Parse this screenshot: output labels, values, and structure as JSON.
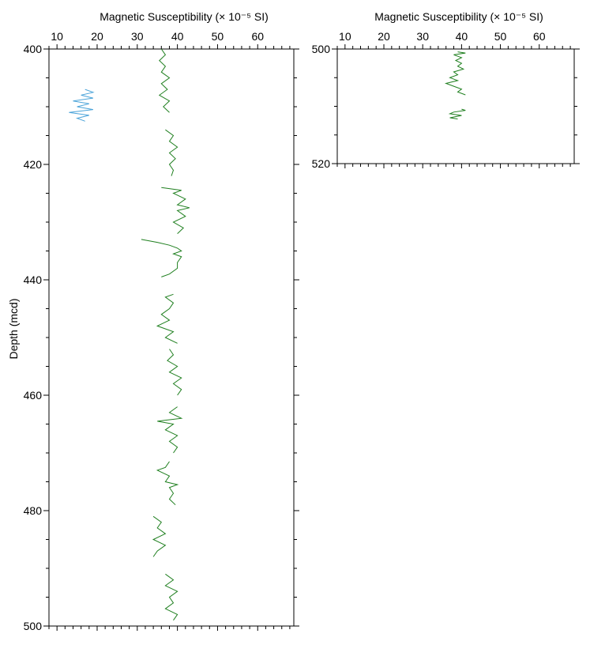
{
  "chart_data": [
    {
      "type": "line",
      "title": "Magnetic Susceptibility (× 10⁻⁵ SI)",
      "xlabel": "Magnetic Susceptibility (× 10⁻⁵ SI)",
      "ylabel": "Depth (mcd)",
      "xlim": [
        8,
        69
      ],
      "ylim": [
        400,
        500
      ],
      "y_inverted": true,
      "x_ticks": [
        10,
        20,
        30,
        40,
        50,
        60
      ],
      "y_ticks": [
        400,
        420,
        440,
        460,
        480,
        500
      ],
      "grid": false,
      "series": [
        {
          "color": "#4aa3d9",
          "points": [
            [
              17,
              407
            ],
            [
              19,
              407.5
            ],
            [
              16,
              408
            ],
            [
              19,
              408.5
            ],
            [
              14,
              409
            ],
            [
              18,
              409.5
            ],
            [
              15,
              410
            ],
            [
              19,
              410.5
            ],
            [
              13,
              411
            ],
            [
              18,
              411.5
            ],
            [
              15,
              412
            ],
            [
              17,
              412.5
            ]
          ]
        },
        {
          "color": "#1f7f1f",
          "points": [
            [
              36,
              400
            ],
            [
              37,
              401
            ],
            [
              35.5,
              402
            ],
            [
              37,
              403
            ],
            [
              36,
              404
            ],
            [
              38,
              405
            ],
            [
              36,
              406
            ],
            [
              37.5,
              407
            ],
            [
              35.5,
              408
            ],
            [
              38,
              409
            ],
            [
              36.5,
              410
            ],
            [
              38,
              411
            ]
          ]
        },
        {
          "color": "#1f7f1f",
          "points": [
            [
              37,
              414
            ],
            [
              39,
              415
            ],
            [
              38,
              416
            ],
            [
              40,
              417
            ],
            [
              38,
              418
            ],
            [
              39.5,
              419
            ],
            [
              38,
              420
            ],
            [
              39,
              421
            ],
            [
              38.5,
              422
            ]
          ]
        },
        {
          "color": "#1f7f1f",
          "points": [
            [
              36,
              424
            ],
            [
              41,
              424.5
            ],
            [
              39,
              425
            ],
            [
              42,
              426
            ],
            [
              40,
              427
            ],
            [
              43,
              427.5
            ],
            [
              40,
              428
            ],
            [
              42,
              429
            ],
            [
              39,
              430
            ],
            [
              41.5,
              431
            ],
            [
              40,
              432
            ]
          ]
        },
        {
          "color": "#1f7f1f",
          "points": [
            [
              31,
              433
            ],
            [
              35,
              433.5
            ],
            [
              38,
              434
            ],
            [
              40,
              434.5
            ],
            [
              41,
              435
            ],
            [
              39,
              435.5
            ],
            [
              41,
              436
            ],
            [
              40,
              437
            ],
            [
              40,
              438
            ],
            [
              38,
              439
            ],
            [
              36,
              439.5
            ]
          ]
        },
        {
          "color": "#1f7f1f",
          "points": [
            [
              39,
              442.5
            ],
            [
              37,
              443
            ],
            [
              39,
              444
            ],
            [
              38,
              445
            ],
            [
              36,
              446
            ],
            [
              38,
              447
            ],
            [
              35,
              448
            ],
            [
              39,
              449
            ],
            [
              37,
              450
            ],
            [
              40,
              451
            ]
          ]
        },
        {
          "color": "#1f7f1f",
          "points": [
            [
              38,
              452
            ],
            [
              39,
              453
            ],
            [
              37.5,
              454
            ],
            [
              40,
              455
            ],
            [
              38,
              456
            ],
            [
              41,
              457
            ],
            [
              39,
              458
            ],
            [
              41,
              459
            ],
            [
              40,
              460
            ]
          ]
        },
        {
          "color": "#1f7f1f",
          "points": [
            [
              40,
              462
            ],
            [
              38,
              463
            ],
            [
              41,
              464
            ],
            [
              35,
              464.5
            ],
            [
              39,
              465
            ],
            [
              37,
              466
            ],
            [
              40,
              467
            ],
            [
              38,
              468
            ],
            [
              40,
              469
            ],
            [
              39,
              470
            ]
          ]
        },
        {
          "color": "#1f7f1f",
          "points": [
            [
              38,
              471.5
            ],
            [
              37,
              472.5
            ],
            [
              35,
              473
            ],
            [
              38,
              474
            ],
            [
              37,
              475
            ],
            [
              40,
              475.5
            ],
            [
              38,
              476
            ],
            [
              39,
              477
            ],
            [
              38,
              478
            ],
            [
              39.5,
              479
            ]
          ]
        },
        {
          "color": "#1f7f1f",
          "points": [
            [
              34,
              481
            ],
            [
              36,
              482
            ],
            [
              35,
              483
            ],
            [
              37,
              484
            ],
            [
              34,
              485
            ],
            [
              37,
              486
            ],
            [
              35,
              487
            ],
            [
              34,
              488
            ]
          ]
        },
        {
          "color": "#1f7f1f",
          "points": [
            [
              37,
              491
            ],
            [
              39,
              492
            ],
            [
              37,
              493
            ],
            [
              40,
              494
            ],
            [
              38,
              495
            ],
            [
              39,
              496
            ],
            [
              37,
              497
            ],
            [
              40,
              498
            ],
            [
              39,
              499
            ]
          ]
        }
      ]
    },
    {
      "type": "line",
      "title": "Magnetic Susceptibility (× 10⁻⁵ SI)",
      "xlabel": "Magnetic Susceptibility (× 10⁻⁵ SI)",
      "ylabel": "",
      "xlim": [
        8,
        69
      ],
      "ylim": [
        500,
        520
      ],
      "y_inverted": true,
      "x_ticks": [
        10,
        20,
        30,
        40,
        50,
        60
      ],
      "y_ticks": [
        500,
        520
      ],
      "grid": false,
      "series": [
        {
          "color": "#1f7f1f",
          "points": [
            [
              39,
              500.5
            ],
            [
              41,
              500.7
            ],
            [
              38,
              501
            ],
            [
              40,
              501.5
            ],
            [
              38.5,
              502
            ],
            [
              40,
              502.5
            ],
            [
              39,
              503
            ],
            [
              40.5,
              503.5
            ],
            [
              38,
              504
            ],
            [
              39,
              504.5
            ],
            [
              37,
              505
            ],
            [
              39,
              505.5
            ],
            [
              36,
              506
            ],
            [
              38,
              506.5
            ],
            [
              40,
              507
            ],
            [
              39,
              507.5
            ],
            [
              41,
              508
            ]
          ]
        },
        {
          "color": "#1f7f1f",
          "points": [
            [
              40,
              510.5
            ],
            [
              41,
              510.7
            ],
            [
              38,
              511
            ],
            [
              37,
              511.3
            ],
            [
              40,
              511.6
            ],
            [
              37,
              512
            ],
            [
              39,
              512.2
            ]
          ]
        }
      ]
    }
  ]
}
